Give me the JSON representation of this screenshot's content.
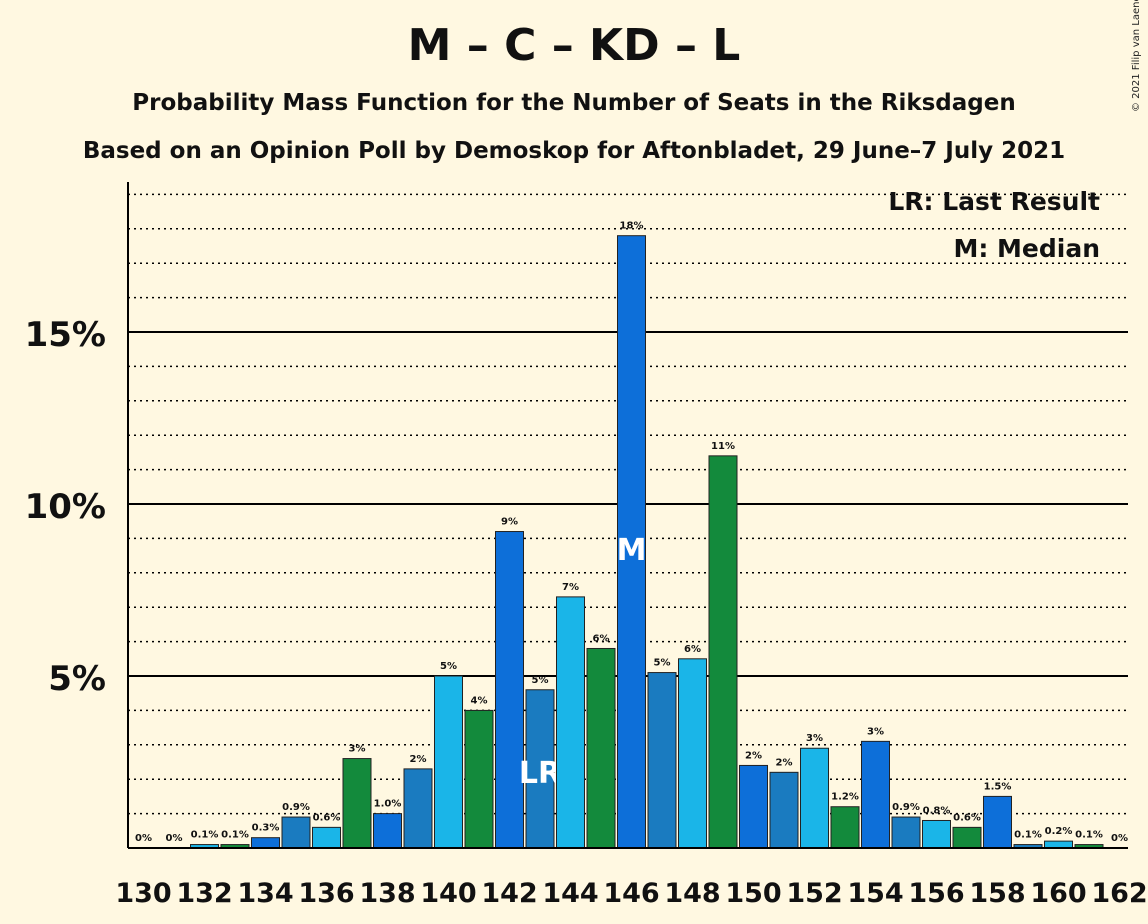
{
  "header": {
    "title": "M – C – KD – L",
    "subtitle": "Probability Mass Function for the Number of Seats in the Riksdagen",
    "source": "Based on an Opinion Poll by Demoskop for Aftonbladet, 29 June–7 July 2021",
    "copyright": "© 2021 Filip van Laenen"
  },
  "chart_data": {
    "type": "bar",
    "x": [
      130,
      131,
      132,
      133,
      134,
      135,
      136,
      137,
      138,
      139,
      140,
      141,
      142,
      143,
      144,
      145,
      146,
      147,
      148,
      149,
      150,
      151,
      152,
      153,
      154,
      155,
      156,
      157,
      158,
      159,
      160,
      161,
      162
    ],
    "values": [
      0,
      0,
      0.1,
      0.1,
      0.3,
      0.9,
      0.6,
      2.6,
      1.0,
      2.3,
      5.0,
      4.0,
      9.2,
      4.6,
      7.3,
      5.8,
      17.8,
      5.1,
      5.5,
      11.4,
      2.4,
      2.2,
      2.9,
      1.2,
      3.1,
      0.9,
      0.8,
      0.6,
      1.5,
      0.1,
      0.2,
      0.1,
      0
    ],
    "labels": [
      "0%",
      "0%",
      "0.1%",
      "0.1%",
      "0.3%",
      "0.9%",
      "0.6%",
      "3%",
      "1.0%",
      "2%",
      "5%",
      "4%",
      "9%",
      "5%",
      "7%",
      "6%",
      "18%",
      "5%",
      "6%",
      "11%",
      "2%",
      "2%",
      "3%",
      "1.2%",
      "3%",
      "0.9%",
      "0.8%",
      "0.6%",
      "1.5%",
      "0.1%",
      "0.2%",
      "0.1%",
      "0%"
    ],
    "x_tick_labels": [
      "130",
      "132",
      "134",
      "136",
      "138",
      "140",
      "142",
      "144",
      "146",
      "148",
      "150",
      "152",
      "154",
      "156",
      "158",
      "160",
      "162"
    ],
    "y_tick_labels": [
      "5%",
      "10%",
      "15%"
    ],
    "y_ticks": [
      5,
      10,
      15
    ],
    "ylim": [
      0,
      19.5
    ],
    "grid": "dotted every 1%, solid every 5%",
    "colors": [
      "#0d6fd9",
      "#1a7bc0",
      "#1ab5e8",
      "#138a3c"
    ],
    "markers": {
      "143": "LR",
      "146": "M"
    },
    "legend": [
      "LR: Last Result",
      "M: Median"
    ],
    "legend_position": "top-right"
  }
}
